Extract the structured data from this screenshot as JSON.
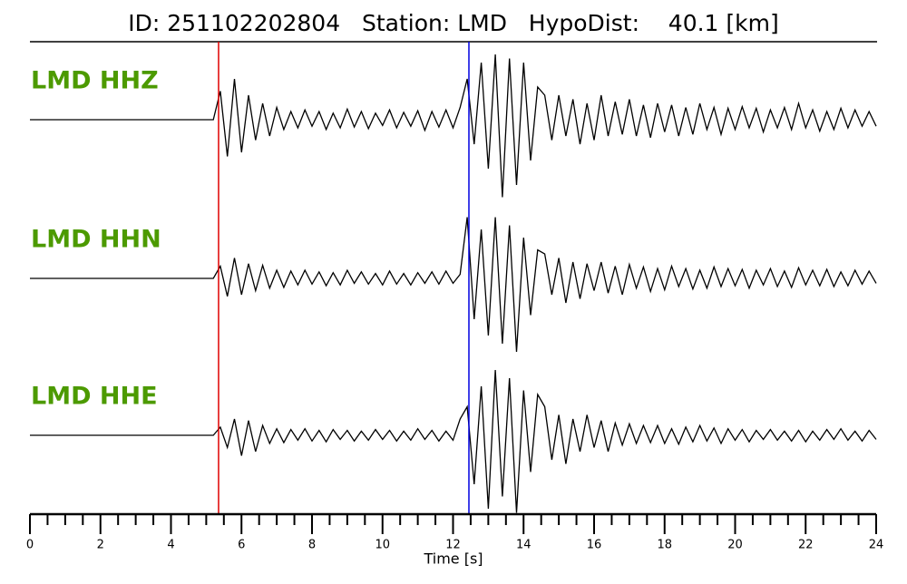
{
  "chart_data": {
    "type": "seismogram",
    "title": "ID: 251102202804   Station: LMD   HypoDist:    40.1 [km]",
    "xlabel": "Time [s]",
    "xlim": [
      0,
      24
    ],
    "xticks": [
      0,
      2,
      4,
      6,
      8,
      10,
      12,
      14,
      16,
      18,
      20,
      22,
      24
    ],
    "minor_xticks": [
      0.5,
      1,
      1.5,
      2.5,
      3,
      3.5,
      4.5,
      5,
      5.5,
      6.5,
      7,
      7.5,
      8.5,
      9,
      9.5,
      10.5,
      11,
      11.5,
      12.5,
      13,
      13.5,
      14.5,
      15,
      15.5,
      16.5,
      17,
      17.5,
      18.5,
      19,
      19.5,
      20.5,
      21,
      21.5,
      22.5,
      23,
      23.5
    ],
    "ylim": [
      -1,
      1
    ],
    "picks": [
      {
        "value": 5.35,
        "color": "#e00000"
      },
      {
        "value": 12.45,
        "color": "#0000e0"
      }
    ],
    "label_color": "#4c9a00",
    "line_color": "#000000",
    "x": [
      0,
      0.2,
      0.4,
      0.6,
      0.8,
      1,
      1.2,
      1.4,
      1.6,
      1.8,
      2,
      2.2,
      2.4,
      2.6,
      2.8,
      3,
      3.2,
      3.4,
      3.6,
      3.8,
      4,
      4.2,
      4.4,
      4.6,
      4.8,
      5,
      5.2,
      5.4,
      5.6,
      5.8,
      6,
      6.2,
      6.4,
      6.6,
      6.8,
      7,
      7.2,
      7.4,
      7.6,
      7.8,
      8,
      8.2,
      8.4,
      8.6,
      8.8,
      9,
      9.2,
      9.4,
      9.6,
      9.8,
      10,
      10.2,
      10.4,
      10.6,
      10.8,
      11,
      11.2,
      11.4,
      11.6,
      11.8,
      12,
      12.2,
      12.4,
      12.6,
      12.8,
      13,
      13.2,
      13.4,
      13.6,
      13.8,
      14,
      14.2,
      14.4,
      14.6,
      14.8,
      15,
      15.2,
      15.4,
      15.6,
      15.8,
      16,
      16.2,
      16.4,
      16.6,
      16.8,
      17,
      17.2,
      17.4,
      17.6,
      17.8,
      18,
      18.2,
      18.4,
      18.6,
      18.8,
      19,
      19.2,
      19.4,
      19.6,
      19.8,
      20,
      20.2,
      20.4,
      20.6,
      20.8,
      21,
      21.2,
      21.4,
      21.6,
      21.8,
      22,
      22.2,
      22.4,
      22.6,
      22.8,
      23,
      23.2,
      23.4,
      23.6,
      23.8,
      24
    ],
    "series": [
      {
        "name": "LMD HHZ",
        "values": [
          0,
          0,
          0,
          0,
          0,
          0,
          0,
          0,
          0,
          0,
          0,
          0,
          0,
          0,
          0,
          0,
          0,
          0,
          0,
          0,
          0,
          0,
          0,
          0,
          0,
          0,
          0,
          0.35,
          -0.45,
          0.5,
          -0.4,
          0.3,
          -0.25,
          0.2,
          -0.2,
          0.15,
          -0.12,
          0.1,
          -0.1,
          0.12,
          -0.08,
          0.1,
          -0.12,
          0.08,
          -0.1,
          0.13,
          -0.09,
          0.1,
          -0.11,
          0.08,
          -0.07,
          0.12,
          -0.1,
          0.09,
          -0.08,
          0.11,
          -0.13,
          0.1,
          -0.09,
          0.12,
          -0.1,
          0.15,
          0.5,
          -0.3,
          0.7,
          -0.6,
          0.8,
          -0.95,
          0.75,
          -0.8,
          0.7,
          -0.5,
          0.4,
          0.3,
          -0.25,
          0.3,
          -0.2,
          0.25,
          -0.3,
          0.2,
          -0.25,
          0.3,
          -0.2,
          0.22,
          -0.18,
          0.25,
          -0.2,
          0.18,
          -0.22,
          0.2,
          -0.15,
          0.18,
          -0.2,
          0.15,
          -0.18,
          0.2,
          -0.12,
          0.15,
          -0.18,
          0.14,
          -0.12,
          0.16,
          -0.1,
          0.14,
          -0.15,
          0.12,
          -0.1,
          0.15,
          -0.12,
          0.2,
          -0.1,
          0.12,
          -0.14,
          0.1,
          -0.12,
          0.14,
          -0.1,
          0.12,
          -0.08,
          0.1,
          -0.08
        ]
      },
      {
        "name": "LMD HHN",
        "values": [
          0,
          0,
          0,
          0,
          0,
          0,
          0,
          0,
          0,
          0,
          0,
          0,
          0,
          0,
          0,
          0,
          0,
          0,
          0,
          0,
          0,
          0,
          0,
          0,
          0,
          0,
          0,
          0.15,
          -0.22,
          0.25,
          -0.2,
          0.18,
          -0.15,
          0.16,
          -0.12,
          0.1,
          -0.11,
          0.09,
          -0.08,
          0.1,
          -0.07,
          0.08,
          -0.09,
          0.07,
          -0.08,
          0.1,
          -0.06,
          0.08,
          -0.07,
          0.06,
          -0.08,
          0.09,
          -0.07,
          0.06,
          -0.08,
          0.07,
          -0.06,
          0.08,
          -0.07,
          0.09,
          -0.06,
          0.05,
          0.75,
          -0.5,
          0.6,
          -0.7,
          0.75,
          -0.8,
          0.65,
          -0.9,
          0.5,
          -0.45,
          0.35,
          0.3,
          -0.2,
          0.25,
          -0.3,
          0.2,
          -0.25,
          0.18,
          -0.15,
          0.2,
          -0.18,
          0.15,
          -0.2,
          0.17,
          -0.12,
          0.14,
          -0.16,
          0.12,
          -0.14,
          0.15,
          -0.1,
          0.12,
          -0.13,
          0.1,
          -0.12,
          0.14,
          -0.1,
          0.12,
          -0.09,
          0.11,
          -0.12,
          0.1,
          -0.08,
          0.12,
          -0.1,
          0.09,
          -0.11,
          0.13,
          -0.08,
          0.1,
          -0.09,
          0.11,
          -0.1,
          0.08,
          -0.09,
          0.1,
          -0.07,
          0.09,
          -0.06
        ]
      },
      {
        "name": "LMD HHE",
        "values": [
          0,
          0,
          0,
          0,
          0,
          0,
          0,
          0,
          0,
          0,
          0,
          0,
          0,
          0,
          0,
          0,
          0,
          0,
          0,
          0,
          0,
          0,
          0,
          0,
          0,
          0,
          0,
          0.1,
          -0.15,
          0.2,
          -0.25,
          0.18,
          -0.2,
          0.12,
          -0.1,
          0.08,
          -0.09,
          0.07,
          -0.06,
          0.08,
          -0.07,
          0.06,
          -0.08,
          0.07,
          -0.05,
          0.06,
          -0.07,
          0.05,
          -0.06,
          0.07,
          -0.05,
          0.06,
          -0.07,
          0.05,
          -0.06,
          0.08,
          -0.05,
          0.06,
          -0.07,
          0.05,
          -0.06,
          0.2,
          0.35,
          -0.6,
          0.6,
          -0.9,
          0.8,
          -0.75,
          0.7,
          -0.95,
          0.55,
          -0.45,
          0.5,
          0.35,
          -0.3,
          0.25,
          -0.35,
          0.2,
          -0.2,
          0.25,
          -0.15,
          0.18,
          -0.2,
          0.15,
          -0.12,
          0.14,
          -0.1,
          0.12,
          -0.09,
          0.12,
          -0.1,
          0.08,
          -0.11,
          0.1,
          -0.08,
          0.12,
          -0.07,
          0.09,
          -0.1,
          0.08,
          -0.06,
          0.07,
          -0.08,
          0.06,
          -0.05,
          0.07,
          -0.06,
          0.05,
          -0.07,
          0.06,
          -0.08,
          0.05,
          -0.06,
          0.07,
          -0.05,
          0.08,
          -0.06,
          0.05,
          -0.07,
          0.06,
          -0.05
        ]
      }
    ]
  }
}
